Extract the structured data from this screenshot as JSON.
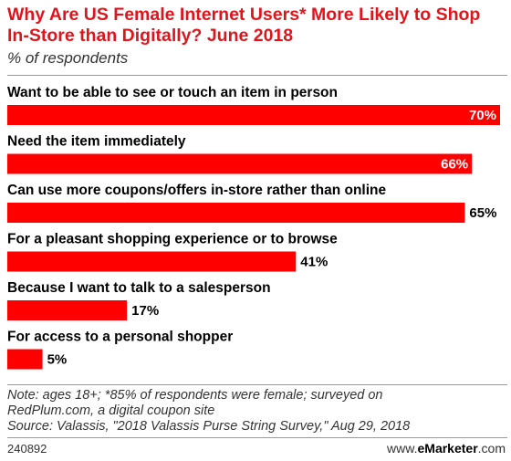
{
  "header": {
    "title": "Why Are US Female Internet Users* More Likely to Shop In-Store than Digitally? June 2018",
    "subtitle": "% of respondents"
  },
  "footer": {
    "note_line1": "Note: ages 18+; *85% of respondents were female; surveyed on",
    "note_line2": "RedPlum.com, a digital coupon site",
    "source": "Source: Valassis, \"2018 Valassis Purse String Survey,\" Aug 29, 2018",
    "chart_id": "240892",
    "brand_prefix": "www.",
    "brand_name": "eMarketer",
    "brand_suffix": ".com"
  },
  "colors": {
    "bar": "#ff0000",
    "title": "#e0151c",
    "value_on_bar": "#ffffff",
    "value_outside": "#000000"
  },
  "chart_data": {
    "type": "bar",
    "orientation": "horizontal",
    "categories": [
      "Want to be able to see or touch an item in person",
      "Need the item immediately",
      "Can use more coupons/offers in-store rather than online",
      "For a pleasant shopping experience or to browse",
      "Because I want to talk to a salesperson",
      "For access to a personal shopper"
    ],
    "values": [
      70,
      66,
      65,
      41,
      17,
      5
    ],
    "value_labels": [
      "70%",
      "66%",
      "65%",
      "41%",
      "17%",
      "5%"
    ],
    "title": "Why Are US Female Internet Users* More Likely to Shop In-Store than Digitally? June 2018",
    "ylabel": "% of respondents",
    "xlim": [
      0,
      70
    ],
    "grid": false
  }
}
